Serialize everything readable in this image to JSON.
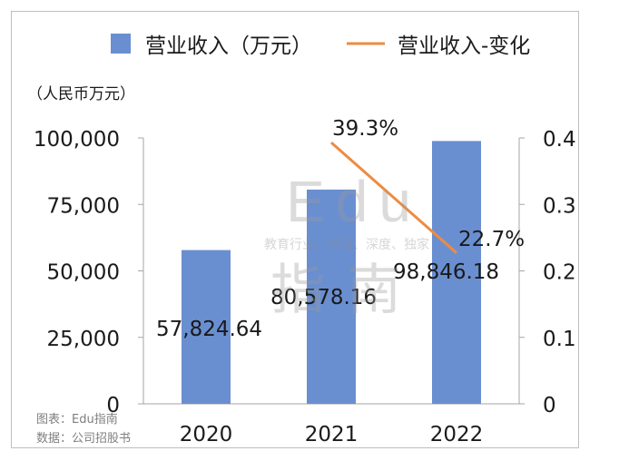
{
  "legend": {
    "bar_label": "营业收入（万元）",
    "line_label": "营业收入-变化"
  },
  "unit_label": "（人民币万元）",
  "footer": {
    "source_chart": "图表：Edu指南",
    "source_data": "数据：公司招股书"
  },
  "watermark": {
    "brand": "Edu",
    "brand_cn": "指南",
    "tagline": "教育行业，前沿、深度、独家"
  },
  "colors": {
    "bar": "#6a8fd0",
    "line": "#ed8b42",
    "axis": "#a6a6a6",
    "text": "#1a1a1a"
  },
  "chart_data": {
    "type": "bar",
    "categories": [
      "2020",
      "2021",
      "2022"
    ],
    "series": [
      {
        "name": "营业收入（万元）",
        "type": "bar",
        "axis": "left",
        "values": [
          57824.64,
          80578.16,
          98846.18
        ],
        "labels": [
          "57,824.64",
          "80,578.16",
          "98,846.18"
        ]
      },
      {
        "name": "营业收入-变化",
        "type": "line",
        "axis": "right",
        "values": [
          null,
          0.393,
          0.227
        ],
        "labels": [
          "",
          "39.3%",
          "22.7%"
        ]
      }
    ],
    "y_left": {
      "min": 0,
      "max": 100000,
      "ticks": [
        "0",
        "25,000",
        "50,000",
        "75,000",
        "100,000"
      ]
    },
    "y_right": {
      "min": 0,
      "max": 0.4,
      "ticks": [
        "0",
        "0.1",
        "0.2",
        "0.3",
        "0.4"
      ]
    },
    "ylabel": "（人民币万元）",
    "legend_position": "top"
  }
}
